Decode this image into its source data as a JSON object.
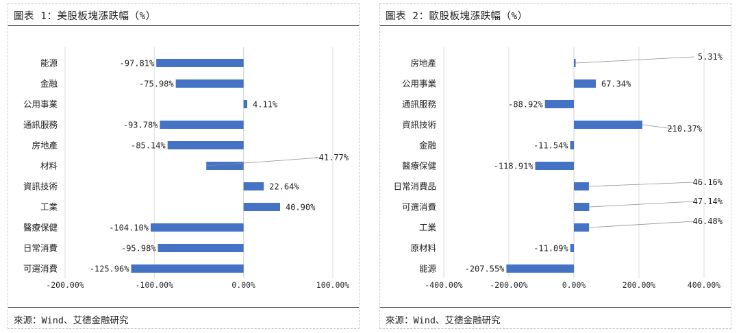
{
  "chart_data": [
    {
      "type": "bar",
      "orientation": "horizontal",
      "title": "圖表 1：美股板塊漲跌幅（%）",
      "source": "來源：Wind、艾德金融研究",
      "categories": [
        "能源",
        "金融",
        "公用事業",
        "通訊服務",
        "房地產",
        "材料",
        "資訊技術",
        "工業",
        "醫療保健",
        "日常消費",
        "可選消費"
      ],
      "values": [
        -97.81,
        -75.98,
        4.11,
        -93.78,
        -85.14,
        -41.77,
        22.64,
        40.9,
        -104.1,
        -95.98,
        -125.96
      ],
      "value_labels": [
        "-97.81%",
        "-75.98%",
        "4.11%",
        "-93.78%",
        "-85.14%",
        "-41.77%",
        "22.64%",
        "40.90%",
        "-104.10%",
        "-95.98%",
        "-125.96%"
      ],
      "xlim": [
        -200,
        100
      ],
      "xticks": [
        -200,
        -100,
        0,
        100
      ],
      "xtick_labels": [
        "-200.00%",
        "-100.00%",
        "0.00%",
        "100.00%"
      ],
      "grid": "vertical",
      "bar_color": "#4472C4"
    },
    {
      "type": "bar",
      "orientation": "horizontal",
      "title": "圖表 2：歐股板塊漲跌幅（%）",
      "source": "來源：Wind、艾德金融研究",
      "categories": [
        "房地產",
        "公用事業",
        "通訊服務",
        "資訊技術",
        "金融",
        "醫療保健",
        "日常消費品",
        "可選消費",
        "工業",
        "原材料",
        "能源"
      ],
      "values": [
        5.31,
        67.34,
        -88.92,
        210.37,
        -11.54,
        -118.91,
        46.16,
        47.14,
        46.48,
        -11.09,
        -207.55
      ],
      "value_labels": [
        "5.31%",
        "67.34%",
        "-88.92%",
        "210.37%",
        "-11.54%",
        "-118.91%",
        "46.16%",
        "47.14%",
        "46.48%",
        "-11.09%",
        "-207.55%"
      ],
      "xlim": [
        -400,
        400
      ],
      "xticks": [
        -400,
        -200,
        0,
        200,
        400
      ],
      "xtick_labels": [
        "-400.00%",
        "-200.00%",
        "0.00%",
        "200.00%",
        "400.00%"
      ],
      "grid": "vertical",
      "bar_color": "#4472C4"
    }
  ]
}
